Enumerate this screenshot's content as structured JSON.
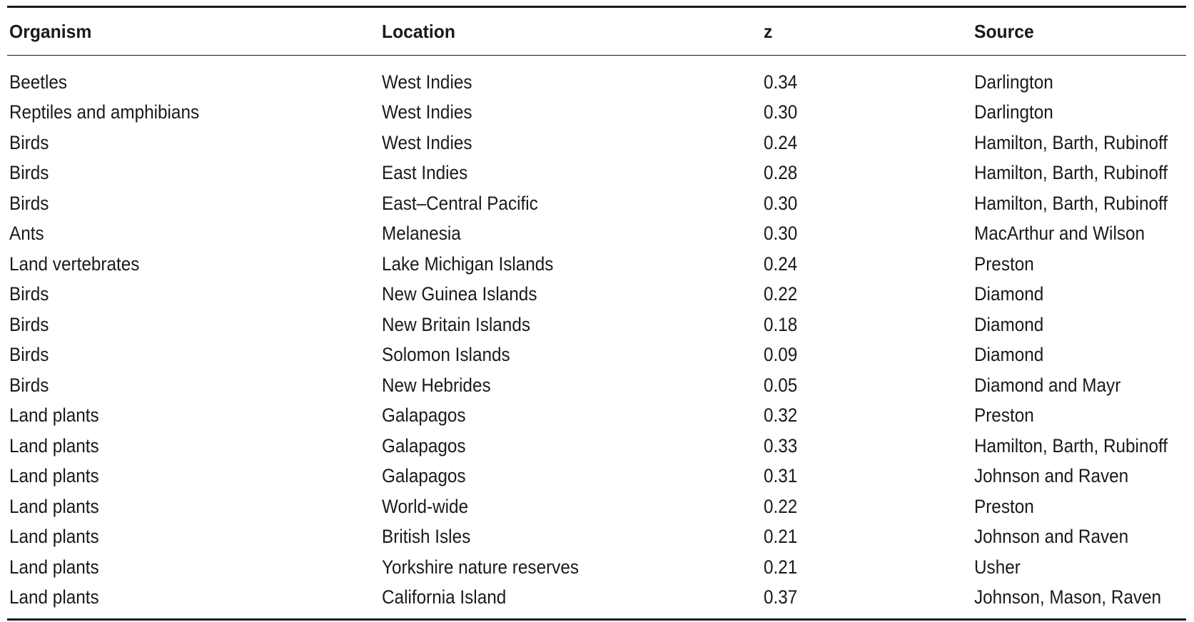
{
  "table": {
    "headers": {
      "organism": "Organism",
      "location": "Location",
      "z": "z",
      "source": "Source"
    },
    "rows": [
      {
        "organism": "Beetles",
        "location": "West Indies",
        "z": "0.34",
        "source": "Darlington"
      },
      {
        "organism": "Reptiles and amphibians",
        "location": "West Indies",
        "z": "0.30",
        "source": "Darlington"
      },
      {
        "organism": "Birds",
        "location": "West Indies",
        "z": "0.24",
        "source": "Hamilton, Barth, Rubinoff"
      },
      {
        "organism": "Birds",
        "location": "East Indies",
        "z": "0.28",
        "source": "Hamilton, Barth, Rubinoff"
      },
      {
        "organism": "Birds",
        "location": "East–Central Pacific",
        "z": "0.30",
        "source": "Hamilton, Barth, Rubinoff"
      },
      {
        "organism": "Ants",
        "location": "Melanesia",
        "z": "0.30",
        "source": "MacArthur and Wilson"
      },
      {
        "organism": "Land vertebrates",
        "location": "Lake Michigan Islands",
        "z": "0.24",
        "source": "Preston"
      },
      {
        "organism": "Birds",
        "location": "New Guinea Islands",
        "z": "0.22",
        "source": "Diamond"
      },
      {
        "organism": "Birds",
        "location": "New Britain Islands",
        "z": "0.18",
        "source": "Diamond"
      },
      {
        "organism": "Birds",
        "location": "Solomon Islands",
        "z": "0.09",
        "source": "Diamond"
      },
      {
        "organism": "Birds",
        "location": "New Hebrides",
        "z": "0.05",
        "source": "Diamond and Mayr"
      },
      {
        "organism": "Land plants",
        "location": "Galapagos",
        "z": "0.32",
        "source": "Preston"
      },
      {
        "organism": "Land plants",
        "location": "Galapagos",
        "z": "0.33",
        "source": "Hamilton, Barth, Rubinoff"
      },
      {
        "organism": "Land plants",
        "location": "Galapagos",
        "z": "0.31",
        "source": "Johnson and Raven"
      },
      {
        "organism": "Land plants",
        "location": "World-wide",
        "z": "0.22",
        "source": "Preston"
      },
      {
        "organism": "Land plants",
        "location": "British Isles",
        "z": "0.21",
        "source": "Johnson and Raven"
      },
      {
        "organism": "Land plants",
        "location": "Yorkshire nature reserves",
        "z": "0.21",
        "source": "Usher"
      },
      {
        "organism": "Land plants",
        "location": "California Island",
        "z": "0.37",
        "source": "Johnson, Mason, Raven"
      }
    ]
  }
}
